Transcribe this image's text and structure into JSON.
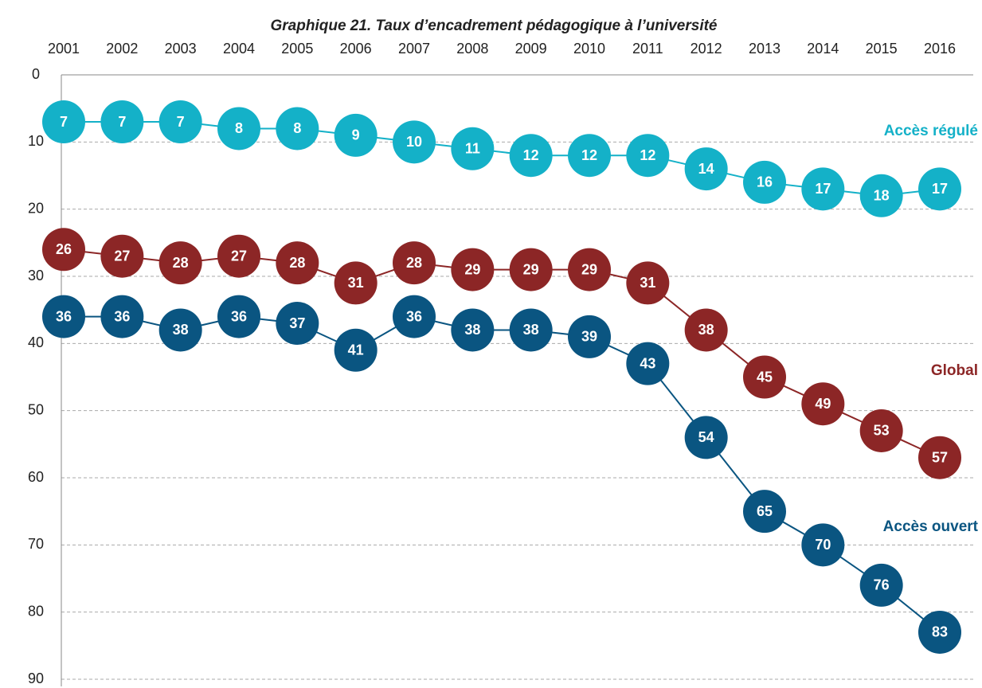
{
  "chart_data": {
    "type": "line",
    "title": "Graphique 21. Taux d’encadrement pédagogique à l’université",
    "categories": [
      "2001",
      "2002",
      "2003",
      "2004",
      "2005",
      "2006",
      "2007",
      "2008",
      "2009",
      "2010",
      "2011",
      "2012",
      "2013",
      "2014",
      "2015",
      "2016"
    ],
    "series": [
      {
        "name": "Accès régulé",
        "color": "#14b1c8",
        "values": [
          7,
          7,
          7,
          8,
          8,
          9,
          10,
          11,
          12,
          12,
          12,
          14,
          16,
          17,
          18,
          17
        ]
      },
      {
        "name": "Global",
        "color": "#8c2626",
        "values": [
          26,
          27,
          28,
          27,
          28,
          31,
          28,
          29,
          29,
          29,
          31,
          38,
          45,
          49,
          53,
          57
        ]
      },
      {
        "name": "Accès ouvert",
        "color": "#0a5581",
        "values": [
          36,
          36,
          38,
          36,
          37,
          41,
          36,
          38,
          38,
          39,
          43,
          54,
          65,
          70,
          76,
          83
        ]
      }
    ],
    "ylim": [
      0,
      90
    ],
    "yticks": [
      0,
      10,
      20,
      30,
      40,
      50,
      60,
      70,
      80,
      90
    ],
    "y_inverted": true,
    "grid": true,
    "data_labels": true
  }
}
